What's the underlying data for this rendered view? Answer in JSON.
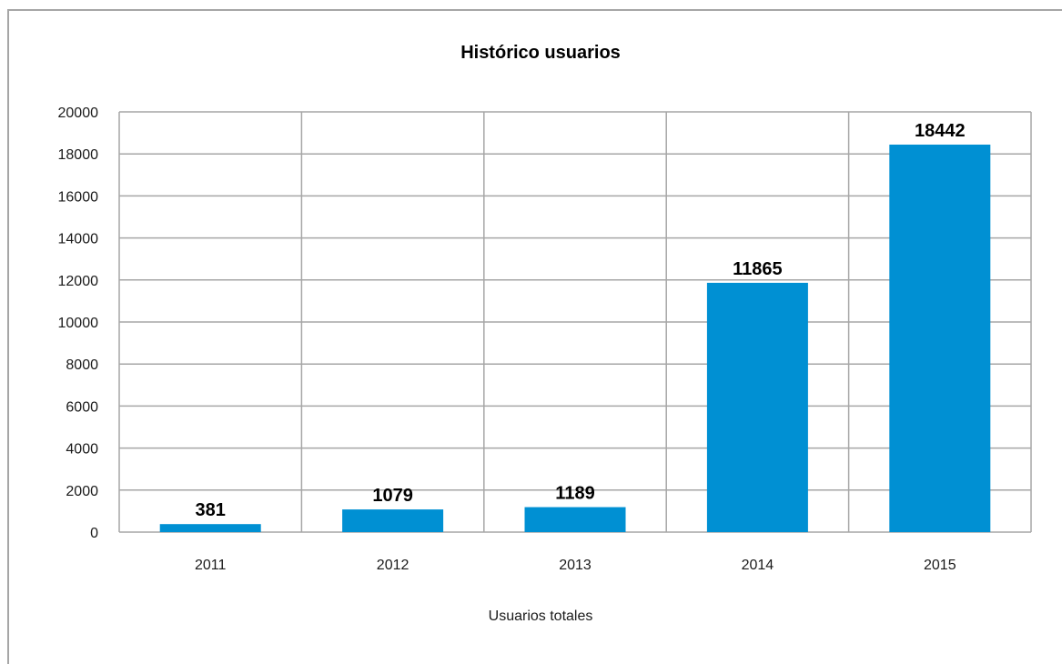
{
  "chart_data": {
    "type": "bar",
    "title": "Histórico usuarios",
    "categories": [
      "2011",
      "2012",
      "2013",
      "2014",
      "2015"
    ],
    "series": [
      {
        "name": "Usuarios totales",
        "values": [
          381,
          1079,
          1189,
          11865,
          18442
        ],
        "color": "#0090d3"
      }
    ],
    "data_labels": [
      "381",
      "1079",
      "1189",
      "11865",
      "18442"
    ],
    "yticks": [
      "0",
      "2000",
      "4000",
      "6000",
      "8000",
      "10000",
      "12000",
      "14000",
      "16000",
      "18000",
      "20000"
    ],
    "ylim": [
      0,
      20000
    ],
    "grid": true,
    "legend_position": "bottom",
    "grid_color": "#a6a6a6"
  }
}
